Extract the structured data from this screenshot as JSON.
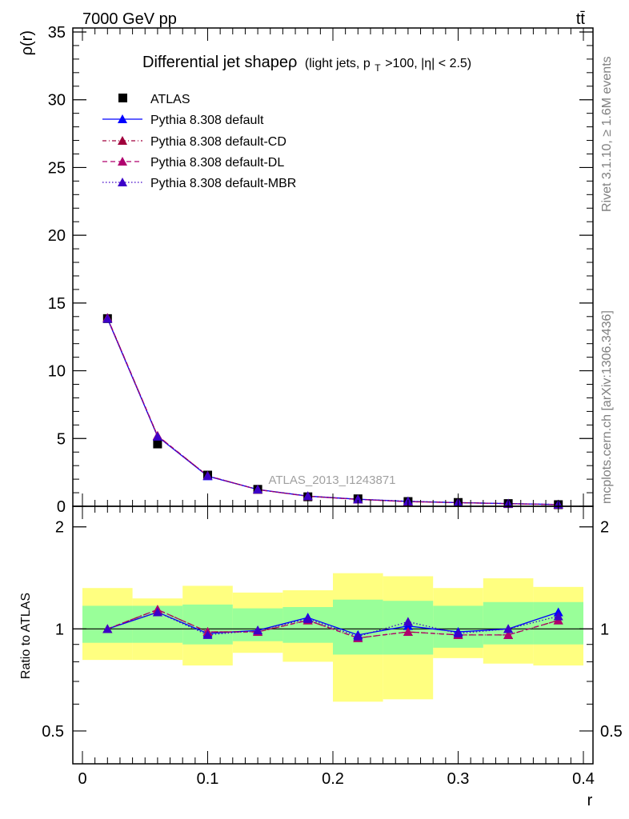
{
  "header": {
    "energy_label": "7000 GeV pp",
    "process_label": "tt̄",
    "side_label_top": "Rivet 3.1.10, ≥ 1.6M events",
    "side_label_bottom": "mcplots.cern.ch [arXiv:1306.3436]"
  },
  "colors": {
    "atlas": "#000000",
    "default": "#0000ff",
    "default_cd": "#a0003c",
    "default_dl": "#b0006e",
    "default_mbr": "#3c00c8",
    "band_outer": "#ffff80",
    "band_inner": "#99ff99"
  },
  "chart_data": [
    {
      "type": "line",
      "title_main": "Differential jet shapeρ",
      "title_sub_prefix": "(light jets, p",
      "title_sub_subscript": "T",
      "title_sub_suffix": ">100, |η| < 2.5)",
      "watermark": "ATLAS_2013_I1243871",
      "ylabel": "ρ(r)",
      "xlabel": "",
      "xlim": [
        0,
        0.4
      ],
      "ylim": [
        0,
        35
      ],
      "yticks": [
        0,
        5,
        10,
        15,
        20,
        25,
        30,
        35
      ],
      "grid": false,
      "legend_position": "top-left",
      "x": [
        0.02,
        0.06,
        0.1,
        0.14,
        0.18,
        0.22,
        0.26,
        0.3,
        0.34,
        0.38
      ],
      "data": {
        "name": "ATLAS",
        "values": [
          13.85,
          4.6,
          2.3,
          1.25,
          0.7,
          0.55,
          0.35,
          0.28,
          0.2,
          0.12
        ]
      },
      "series": [
        {
          "name": "Pythia 8.308 default",
          "values": [
            13.85,
            5.15,
            2.22,
            1.24,
            0.75,
            0.52,
            0.36,
            0.27,
            0.2,
            0.13
          ]
        },
        {
          "name": "Pythia 8.308 default-CD",
          "values": [
            13.9,
            5.2,
            2.25,
            1.23,
            0.74,
            0.51,
            0.34,
            0.27,
            0.19,
            0.12
          ]
        },
        {
          "name": "Pythia 8.308 default-DL",
          "values": [
            13.9,
            5.2,
            2.25,
            1.23,
            0.74,
            0.51,
            0.34,
            0.27,
            0.19,
            0.12
          ]
        },
        {
          "name": "Pythia 8.308 default-MBR",
          "values": [
            13.85,
            5.15,
            2.24,
            1.24,
            0.75,
            0.52,
            0.37,
            0.27,
            0.2,
            0.13
          ]
        }
      ]
    },
    {
      "type": "line",
      "ylabel": "Ratio to ATLAS",
      "xlabel": "r",
      "xlim": [
        0,
        0.4
      ],
      "ylim": [
        0.4,
        2.3
      ],
      "yticks": [
        0.5,
        1,
        2
      ],
      "xticks": [
        0,
        0.1,
        0.2,
        0.3,
        0.4
      ],
      "xtick_labels": [
        "0",
        "0.1",
        "0.2",
        "0.3",
        "0.4"
      ],
      "ytick_labels": [
        "0.5",
        "1",
        "2"
      ],
      "reference_line": 1,
      "bin_edges": [
        0,
        0.04,
        0.08,
        0.12,
        0.16,
        0.2,
        0.24,
        0.28,
        0.32,
        0.36,
        0.4
      ],
      "band_outer": {
        "low": [
          0.81,
          0.81,
          0.78,
          0.85,
          0.8,
          0.61,
          0.62,
          0.82,
          0.79,
          0.78
        ],
        "high": [
          1.32,
          1.23,
          1.34,
          1.28,
          1.3,
          1.46,
          1.43,
          1.32,
          1.41,
          1.33
        ]
      },
      "band_inner": {
        "low": [
          0.91,
          0.91,
          0.9,
          0.92,
          0.91,
          0.84,
          0.84,
          0.88,
          0.9,
          0.9
        ],
        "high": [
          1.17,
          1.17,
          1.18,
          1.15,
          1.16,
          1.22,
          1.21,
          1.17,
          1.2,
          1.2
        ]
      },
      "x": [
        0.02,
        0.06,
        0.1,
        0.14,
        0.18,
        0.22,
        0.26,
        0.3,
        0.34,
        0.38
      ],
      "series": [
        {
          "name": "Pythia 8.308 default",
          "values": [
            1.0,
            1.12,
            0.97,
            0.99,
            1.08,
            0.96,
            1.02,
            0.98,
            1.0,
            1.12
          ]
        },
        {
          "name": "Pythia 8.308 default-CD",
          "values": [
            1.0,
            1.14,
            0.98,
            0.98,
            1.06,
            0.94,
            0.98,
            0.96,
            0.96,
            1.06
          ]
        },
        {
          "name": "Pythia 8.308 default-DL",
          "values": [
            1.0,
            1.14,
            0.98,
            0.98,
            1.06,
            0.94,
            0.98,
            0.96,
            0.96,
            1.06
          ]
        },
        {
          "name": "Pythia 8.308 default-MBR",
          "values": [
            1.0,
            1.12,
            0.96,
            0.99,
            1.07,
            0.95,
            1.05,
            0.97,
            1.0,
            1.09
          ]
        }
      ]
    }
  ]
}
